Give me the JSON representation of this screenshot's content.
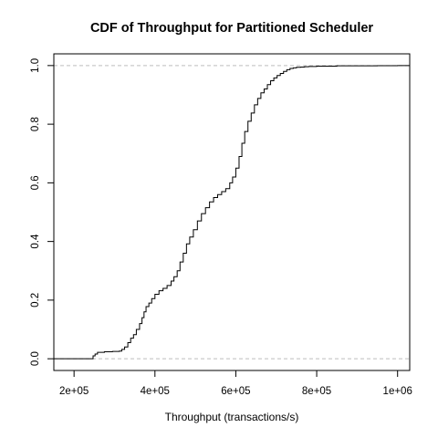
{
  "chart_data": {
    "type": "line",
    "subtype": "ecdf-step",
    "title": "CDF of Throughput for Partitioned Scheduler",
    "xlabel": "Throughput (transactions/s)",
    "ylabel": "",
    "xlim": [
      150000,
      1030000
    ],
    "ylim": [
      -0.04,
      1.04
    ],
    "x_ticks": [
      200000,
      400000,
      600000,
      800000,
      1000000
    ],
    "x_tick_labels": [
      "2e+05",
      "4e+05",
      "6e+05",
      "8e+05",
      "1e+06"
    ],
    "y_ticks": [
      0.0,
      0.2,
      0.4,
      0.6,
      0.8,
      1.0
    ],
    "y_tick_labels": [
      "0.0",
      "0.2",
      "0.4",
      "0.6",
      "0.8",
      "1.0"
    ],
    "reference_lines": [
      0,
      1
    ],
    "grid": false,
    "colors": {
      "line": "#000000",
      "reference": "#bebebe",
      "box": "#000000"
    },
    "series": [
      {
        "x": [
          150000,
          243000,
          247000,
          252000,
          258000,
          275000,
          295000,
          312000,
          318000,
          325000,
          333000,
          340000,
          347000,
          354000,
          362000,
          368000,
          373000,
          378000,
          385000,
          392000,
          400000,
          410000,
          420000,
          430000,
          440000,
          447000,
          455000,
          462000,
          470000,
          478000,
          486000,
          495000,
          505000,
          515000,
          525000,
          535000,
          545000,
          555000,
          565000,
          575000,
          585000,
          592000,
          600000,
          608000,
          615000,
          622000,
          630000,
          638000,
          646000,
          654000,
          662000,
          670000,
          678000,
          686000,
          694000,
          702000,
          710000,
          718000,
          726000,
          734000,
          742000,
          750000,
          760000,
          770000,
          780000,
          800000,
          820000,
          850000,
          900000,
          950000,
          1000000,
          1030000
        ],
        "y": [
          0.0,
          0.0,
          0.01,
          0.016,
          0.022,
          0.024,
          0.025,
          0.026,
          0.032,
          0.04,
          0.055,
          0.07,
          0.082,
          0.1,
          0.12,
          0.14,
          0.16,
          0.178,
          0.19,
          0.205,
          0.22,
          0.232,
          0.24,
          0.25,
          0.265,
          0.28,
          0.3,
          0.33,
          0.36,
          0.392,
          0.415,
          0.44,
          0.47,
          0.495,
          0.515,
          0.535,
          0.55,
          0.56,
          0.57,
          0.58,
          0.6,
          0.62,
          0.65,
          0.69,
          0.735,
          0.775,
          0.81,
          0.838,
          0.866,
          0.888,
          0.907,
          0.92,
          0.935,
          0.948,
          0.958,
          0.966,
          0.973,
          0.98,
          0.986,
          0.99,
          0.992,
          0.994,
          0.995,
          0.996,
          0.997,
          0.998,
          0.998,
          0.999,
          0.999,
          0.9995,
          1.0,
          1.0
        ]
      }
    ]
  }
}
